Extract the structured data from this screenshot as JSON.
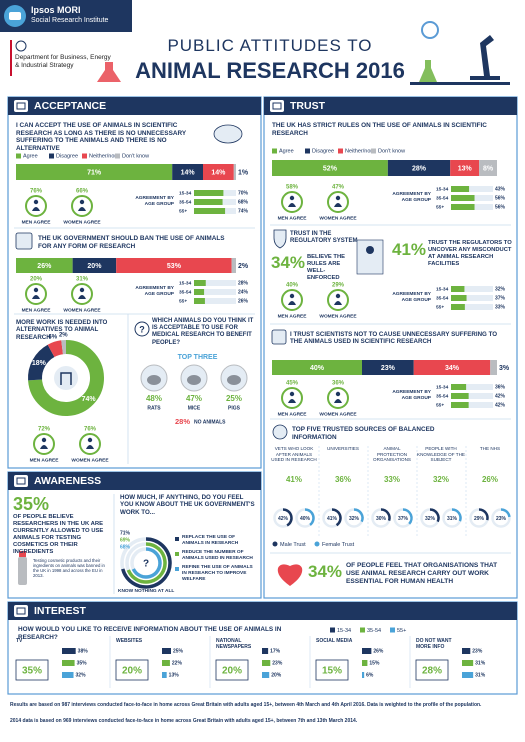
{
  "header": {
    "brand": "Ipsos MORI",
    "institute": "Social Research Institute",
    "department": "Department for Business, Energy & Industrial Strategy",
    "title_line1": "PUBLIC ATTITUDES TO",
    "title_line2": "ANIMAL RESEARCH 2016"
  },
  "style": {
    "response_colors": [
      "#6db33f",
      "#1e3660",
      "#e8474f",
      "#b9bcc0"
    ],
    "age_colors": [
      "#1e3660",
      "#6db33f",
      "#4aa3d8"
    ],
    "male_color": "#1e3660",
    "female_color": "#4aa3d8"
  },
  "age_groups": [
    "15-34",
    "35-54",
    "55+"
  ],
  "age_heading": "AGREEMENT BY AGE GROUP",
  "acceptance": {
    "heading": "ACCEPTANCE",
    "legend": [
      "Agree",
      "Disagree",
      "Neither/nor",
      "Don't know"
    ],
    "q1": {
      "text": "I CAN ACCEPT THE USE OF ANIMALS IN SCIENTIFIC RESEARCH AS LONG AS THERE IS NO UNNECESSARY SUFFERING TO THE ANIMALS AND THERE IS NO ALTERNATIVE",
      "values": [
        71,
        14,
        14,
        1
      ],
      "value_labels": [
        "71%",
        "14%",
        "14%",
        "1%"
      ],
      "men": "76%",
      "men_label": "MEN AGREE",
      "women": "66%",
      "women_label": "WOMEN AGREE",
      "age_values": [
        70,
        68,
        74
      ],
      "age_labels": [
        "70%",
        "68%",
        "74%"
      ]
    },
    "q2": {
      "text": "THE UK GOVERNMENT SHOULD BAN THE USE OF ANIMALS FOR ANY FORM OF RESEARCH",
      "values": [
        26,
        20,
        53,
        2
      ],
      "value_labels": [
        "26%",
        "20%",
        "53%",
        "2%"
      ],
      "men": "20%",
      "men_label": "MEN AGREE",
      "women": "31%",
      "women_label": "WOMEN AGREE",
      "age_values": [
        28,
        24,
        26
      ],
      "age_labels": [
        "28%",
        "24%",
        "26%"
      ]
    },
    "q3": {
      "text": "MORE WORK IS NEEDED INTO ALTERNATIVES TO ANIMAL RESEARCH",
      "values": [
        74,
        18,
        6,
        2
      ],
      "value_labels": [
        "74%",
        "18%",
        "6%",
        "2%"
      ],
      "men": "72%",
      "men_label": "MEN AGREE",
      "women": "76%",
      "women_label": "WOMEN AGREE"
    },
    "q4": {
      "text": "WHICH ANIMALS DO YOU THINK IT IS ACCEPTABLE TO USE FOR MEDICAL RESEARCH TO BENEFIT PEOPLE?",
      "top_label": "TOP THREE",
      "animals": [
        {
          "name": "RATS",
          "value_label": "48%"
        },
        {
          "name": "MICE",
          "value_label": "47%"
        },
        {
          "name": "PIGS",
          "value_label": "25%"
        }
      ],
      "none_value": "28%",
      "none_label": "NO ANIMALS"
    }
  },
  "trust": {
    "heading": "TRUST",
    "legend": [
      "Agree",
      "Disagree",
      "Neither/nor",
      "Don't know"
    ],
    "q1": {
      "text": "THE UK HAS STRICT RULES ON THE USE OF ANIMALS IN SCIENTIFIC RESEARCH",
      "values": [
        52,
        28,
        13,
        8
      ],
      "value_labels": [
        "52%",
        "28%",
        "13%",
        "8%"
      ],
      "men": "58%",
      "men_label": "MEN AGREE",
      "women": "47%",
      "women_label": "WOMEN AGREE",
      "age_values": [
        43,
        56,
        56
      ],
      "age_labels": [
        "43%",
        "56%",
        "56%"
      ]
    },
    "regulatory": {
      "title": "TRUST IN THE REGULATORY SYSTEM",
      "stat1": "34%",
      "stat1_text": "BELIEVE THE RULES ARE WELL-ENFORCED",
      "stat2": "41%",
      "stat2_text": "TRUST THE REGULATORS TO UNCOVER ANY MISCONDUCT AT ANIMAL RESEARCH FACILITIES",
      "men": "40%",
      "men_label": "MEN AGREE",
      "women": "29%",
      "women_label": "WOMEN AGREE",
      "age_values": [
        32,
        37,
        33
      ],
      "age_labels": [
        "32%",
        "37%",
        "33%"
      ]
    },
    "q3": {
      "text": "I TRUST SCIENTISTS NOT TO CAUSE UNNECESSARY SUFFERING TO THE ANIMALS USED IN SCIENTIFIC RESEARCH",
      "values": [
        40,
        23,
        34,
        3
      ],
      "value_labels": [
        "40%",
        "23%",
        "34%",
        "3%"
      ],
      "men": "45%",
      "men_label": "MEN AGREE",
      "women": "36%",
      "women_label": "WOMEN AGREE",
      "age_values": [
        36,
        42,
        42
      ],
      "age_labels": [
        "36%",
        "42%",
        "42%"
      ]
    },
    "sources": {
      "title": "TOP FIVE TRUSTED SOURCES OF BALANCED INFORMATION",
      "names": [
        "VETS WHO LOOK AFTER ANIMALS USED IN RESEARCH",
        "UNIVERSITIES",
        "ANIMAL PROTECTION ORGANISATIONS",
        "PEOPLE WITH KNOWLEDGE OF THE SUBJECT",
        "THE NHS"
      ],
      "totals": [
        "41%",
        "36%",
        "33%",
        "32%",
        "26%"
      ],
      "male": [
        42,
        41,
        30,
        32,
        29
      ],
      "male_labels": [
        "42%",
        "41%",
        "30%",
        "32%",
        "29%"
      ],
      "female": [
        40,
        32,
        37,
        31,
        23
      ],
      "female_labels": [
        "40%",
        "32%",
        "37%",
        "31%",
        "23%"
      ],
      "legend": [
        "Male Trust",
        "Female Trust"
      ]
    },
    "essential": {
      "value": "34%",
      "text": "OF PEOPLE FEEL THAT ORGANISATIONS THAT USE ANIMAL RESEARCH CARRY OUT WORK ESSENTIAL FOR HUMAN HEALTH"
    }
  },
  "awareness": {
    "heading": "AWARENESS",
    "stat": "35%",
    "stat_text": "OF PEOPLE BELIEVE RESEARCHERS IN THE UK ARE CURRENTLY ALLOWED TO USE ANIMALS FOR TESTING COSMETICS OR THEIR INGREDIENTS",
    "note": "Testing cosmetic products and their ingredients on animals was banned in the UK in 1998 and across the EU in 2013.",
    "question": "HOW MUCH, IF ANYTHING, DO YOU FEEL YOU KNOW ABOUT THE UK GOVERNMENT'S WORK TO...",
    "values": [
      71,
      69,
      68
    ],
    "value_labels": [
      "71%",
      "69%",
      "68%"
    ],
    "items": [
      "REPLACE THE USE OF ANIMALS IN RESEARCH",
      "REDUCE THE NUMBER OF ANIMALS USED IN RESEARCH",
      "REFINE THE USE OF ANIMALS IN RESEARCH TO IMPROVE WELFARE"
    ],
    "footer_label": "KNOW NOTHING AT ALL"
  },
  "interest": {
    "heading": "INTEREST",
    "question": "HOW WOULD YOU LIKE TO RECEIVE INFORMATION ABOUT THE USE OF ANIMALS IN RESEARCH?",
    "items": [
      {
        "name": "TV",
        "value_label": "35%",
        "ages": [
          38,
          35,
          32
        ],
        "age_labels": [
          "38%",
          "35%",
          "32%"
        ]
      },
      {
        "name": "WEBSITES",
        "value_label": "20%",
        "ages": [
          25,
          22,
          13
        ],
        "age_labels": [
          "25%",
          "22%",
          "13%"
        ]
      },
      {
        "name": "NATIONAL NEWSPAPERS",
        "value_label": "20%",
        "ages": [
          17,
          23,
          20
        ],
        "age_labels": [
          "17%",
          "23%",
          "20%"
        ]
      },
      {
        "name": "SOCIAL MEDIA",
        "value_label": "15%",
        "ages": [
          26,
          15,
          6
        ],
        "age_labels": [
          "26%",
          "15%",
          "6%"
        ]
      },
      {
        "name": "DO NOT WANT MORE INFO",
        "value_label": "28%",
        "ages": [
          23,
          31,
          31
        ],
        "age_labels": [
          "23%",
          "31%",
          "31%"
        ]
      }
    ]
  },
  "footer": {
    "line1": "Results are based on 987 interviews conducted face-to-face in home across Great Britain with adults aged 15+, between 4th March and 4th April 2016. Data is weighted to the profile of the population.",
    "line2": "2014 data is based on 969 interviews conducted face-to-face in home across Great Britain with adults aged 15+, between 7th and 13th March 2014."
  }
}
